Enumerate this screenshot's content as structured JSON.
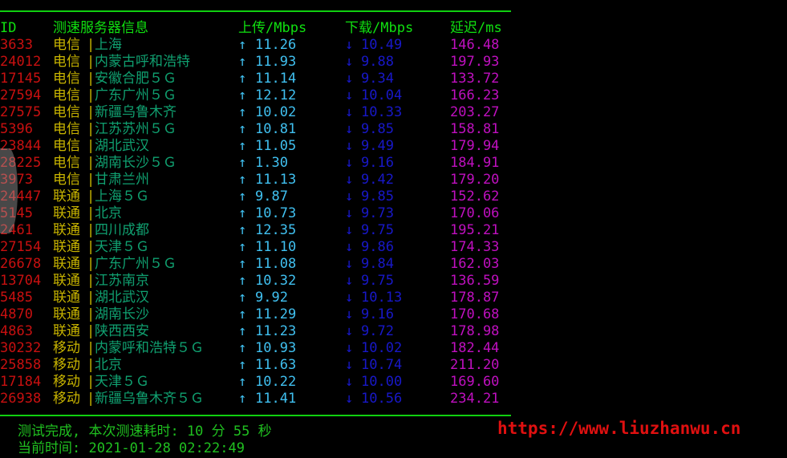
{
  "colors": {
    "header": "#10e010",
    "id": "#c81010",
    "carrier": "#c8b400",
    "location": "#10a070",
    "upload": "#40c0f0",
    "download": "#1818c8",
    "latency": "#c010c0",
    "watermark": "#e01010"
  },
  "header": {
    "id": "ID",
    "server": "测速服务器信息",
    "upload": "上传/Mbps",
    "download": "下载/Mbps",
    "latency": "延迟/ms"
  },
  "icons": {
    "up": "↑",
    "down": "↓",
    "separator": "|"
  },
  "rows": [
    {
      "id": "3633",
      "carrier": "电信",
      "location": "上海",
      "up": "11.26",
      "down": "10.49",
      "latency": "146.48"
    },
    {
      "id": "24012",
      "carrier": "电信",
      "location": "内蒙古呼和浩特",
      "up": "11.93",
      "down": "9.88",
      "latency": "197.93"
    },
    {
      "id": "17145",
      "carrier": "电信",
      "location": "安徽合肥５Ｇ",
      "up": "11.14",
      "down": "9.34",
      "latency": "133.72"
    },
    {
      "id": "27594",
      "carrier": "电信",
      "location": "广东广州５Ｇ",
      "up": "12.12",
      "down": "10.04",
      "latency": "166.23"
    },
    {
      "id": "27575",
      "carrier": "电信",
      "location": "新疆乌鲁木齐",
      "up": "10.02",
      "down": "10.33",
      "latency": "203.27"
    },
    {
      "id": "5396",
      "carrier": "电信",
      "location": "江苏苏州５Ｇ",
      "up": "10.81",
      "down": "9.85",
      "latency": "158.81"
    },
    {
      "id": "23844",
      "carrier": "电信",
      "location": "湖北武汉",
      "up": "11.05",
      "down": "9.49",
      "latency": "179.94"
    },
    {
      "id": "28225",
      "carrier": "电信",
      "location": "湖南长沙５Ｇ",
      "up": "1.30",
      "down": "9.16",
      "latency": "184.91"
    },
    {
      "id": "3973",
      "carrier": "电信",
      "location": "甘肃兰州",
      "up": "11.13",
      "down": "9.42",
      "latency": "179.20"
    },
    {
      "id": "24447",
      "carrier": "联通",
      "location": "上海５Ｇ",
      "up": "9.87",
      "down": "9.85",
      "latency": "152.62"
    },
    {
      "id": "5145",
      "carrier": "联通",
      "location": "北京",
      "up": "10.73",
      "down": "9.73",
      "latency": "170.06"
    },
    {
      "id": "2461",
      "carrier": "联通",
      "location": "四川成都",
      "up": "12.35",
      "down": "9.75",
      "latency": "195.21"
    },
    {
      "id": "27154",
      "carrier": "联通",
      "location": "天津５Ｇ",
      "up": "11.10",
      "down": "9.86",
      "latency": "174.33"
    },
    {
      "id": "26678",
      "carrier": "联通",
      "location": "广东广州５Ｇ",
      "up": "11.08",
      "down": "9.84",
      "latency": "162.03"
    },
    {
      "id": "13704",
      "carrier": "联通",
      "location": "江苏南京",
      "up": "10.32",
      "down": "9.75",
      "latency": "136.59"
    },
    {
      "id": "5485",
      "carrier": "联通",
      "location": "湖北武汉",
      "up": "9.92",
      "down": "10.13",
      "latency": "178.87"
    },
    {
      "id": "4870",
      "carrier": "联通",
      "location": "湖南长沙",
      "up": "11.29",
      "down": "9.16",
      "latency": "170.68"
    },
    {
      "id": "4863",
      "carrier": "联通",
      "location": "陕西西安",
      "up": "11.23",
      "down": "9.72",
      "latency": "178.98"
    },
    {
      "id": "30232",
      "carrier": "移动",
      "location": "内蒙呼和浩特５Ｇ",
      "up": "10.93",
      "down": "10.02",
      "latency": "182.44"
    },
    {
      "id": "25858",
      "carrier": "移动",
      "location": "北京",
      "up": "11.63",
      "down": "10.74",
      "latency": "211.20"
    },
    {
      "id": "17184",
      "carrier": "移动",
      "location": "天津５Ｇ",
      "up": "10.22",
      "down": "10.00",
      "latency": "169.60"
    },
    {
      "id": "26938",
      "carrier": "移动",
      "location": "新疆乌鲁木齐５Ｇ",
      "up": "11.41",
      "down": "10.56",
      "latency": "234.21"
    }
  ],
  "footer": {
    "done": "测试完成, 本次测速耗时: 10 分 55 秒",
    "time": "当前时间: 2021-01-28 02:22:49"
  },
  "watermark": "https://www.liuzhanwu.cn"
}
